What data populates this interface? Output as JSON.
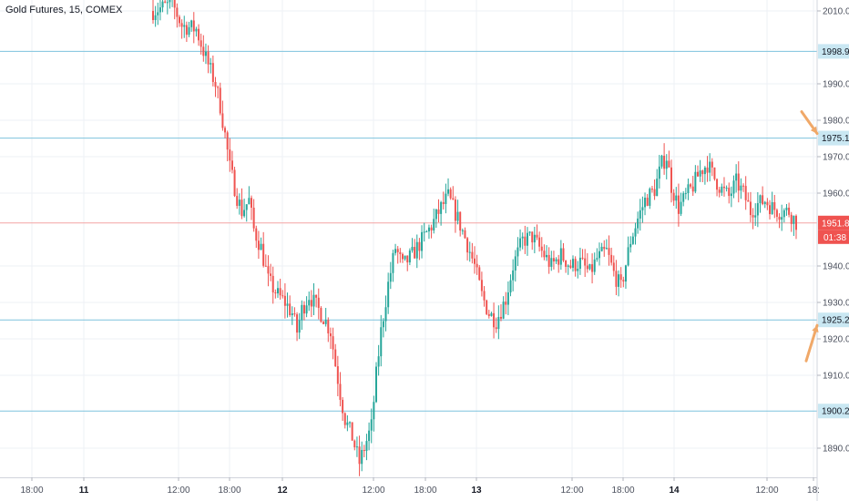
{
  "header": {
    "symbol_title": "Gold Futures, 15, COMEX"
  },
  "colors": {
    "up": "#26a69a",
    "down": "#ef5350",
    "grid": "#eef1f5",
    "axis_text": "#4a4f5c",
    "hline": "#7ec3dd",
    "hline_label_bg": "#c9e7f2",
    "price_line": "#f4a3a3",
    "price_label_bg": "#ef5350",
    "arrow": "#f0a868"
  },
  "chart_data": {
    "type": "candlestick",
    "title": "Gold Futures, 15, COMEX",
    "ylim": [
      1882,
      2013
    ],
    "y_ticks": [
      "2010.0",
      "1990.0",
      "1980.0",
      "1970.0",
      "1960.0",
      "1940.0",
      "1930.0",
      "1920.0",
      "1910.0",
      "1890.0"
    ],
    "x_ticks": [
      "18:00",
      "11",
      "12:00",
      "18:00",
      "12",
      "12:00",
      "18:00",
      "13",
      "12:00",
      "18:00",
      "14",
      "12:00",
      "18:"
    ],
    "x_tick_bold": [
      false,
      true,
      false,
      false,
      true,
      false,
      false,
      true,
      false,
      false,
      true,
      false,
      false
    ],
    "grid": true,
    "horizontal_levels": [
      {
        "value": 1998.9,
        "label": "1998.9"
      },
      {
        "value": 1975.1,
        "label": "1975.1"
      },
      {
        "value": 1925.2,
        "label": "1925.2"
      },
      {
        "value": 1900.2,
        "label": "1900.2"
      }
    ],
    "last_price": {
      "value": 1951.8,
      "label": "1951.8",
      "countdown": "01:38"
    },
    "arrows": [
      {
        "at_level": 1975.1,
        "direction": "down-right"
      },
      {
        "at_level": 1925.2,
        "direction": "up-right"
      }
    ],
    "price_path": [
      [
        0,
        2010
      ],
      [
        8,
        2012
      ],
      [
        12,
        2006
      ],
      [
        18,
        2005
      ],
      [
        22,
        1997
      ],
      [
        26,
        1990
      ],
      [
        28,
        1984
      ],
      [
        30,
        1976
      ],
      [
        32,
        1967
      ],
      [
        35,
        1959
      ],
      [
        37,
        1955
      ],
      [
        40,
        1958
      ],
      [
        42,
        1950
      ],
      [
        45,
        1945
      ],
      [
        48,
        1936
      ],
      [
        52,
        1932
      ],
      [
        55,
        1930
      ],
      [
        58,
        1927
      ],
      [
        60,
        1922
      ],
      [
        62,
        1928
      ],
      [
        65,
        1932
      ],
      [
        68,
        1929
      ],
      [
        71,
        1926
      ],
      [
        74,
        1922
      ],
      [
        76,
        1913
      ],
      [
        78,
        1905
      ],
      [
        80,
        1898
      ],
      [
        83,
        1893
      ],
      [
        86,
        1886
      ],
      [
        88,
        1890
      ],
      [
        91,
        1896
      ],
      [
        93,
        1910
      ],
      [
        95,
        1922
      ],
      [
        98,
        1935
      ],
      [
        101,
        1945
      ],
      [
        104,
        1940
      ],
      [
        108,
        1943
      ],
      [
        112,
        1947
      ],
      [
        116,
        1951
      ],
      [
        120,
        1956
      ],
      [
        123,
        1959
      ],
      [
        127,
        1953
      ],
      [
        131,
        1946
      ],
      [
        134,
        1940
      ],
      [
        137,
        1932
      ],
      [
        140,
        1927
      ],
      [
        143,
        1925
      ],
      [
        147,
        1931
      ],
      [
        150,
        1940
      ],
      [
        154,
        1947
      ],
      [
        158,
        1948
      ],
      [
        162,
        1944
      ],
      [
        166,
        1940
      ],
      [
        170,
        1943
      ],
      [
        174,
        1940
      ],
      [
        178,
        1941
      ],
      [
        182,
        1938
      ],
      [
        185,
        1942
      ],
      [
        189,
        1944
      ],
      [
        192,
        1938
      ],
      [
        195,
        1934
      ],
      [
        199,
        1947
      ],
      [
        202,
        1953
      ],
      [
        205,
        1958
      ],
      [
        209,
        1961
      ],
      [
        212,
        1968
      ],
      [
        214,
        1970
      ],
      [
        216,
        1962
      ],
      [
        219,
        1956
      ],
      [
        222,
        1959
      ],
      [
        225,
        1962
      ],
      [
        228,
        1966
      ],
      [
        231,
        1968
      ],
      [
        234,
        1964
      ],
      [
        237,
        1961
      ],
      [
        240,
        1959
      ],
      [
        243,
        1963
      ],
      [
        246,
        1960
      ],
      [
        249,
        1955
      ],
      [
        252,
        1957
      ],
      [
        255,
        1958
      ],
      [
        258,
        1956
      ],
      [
        261,
        1955
      ],
      [
        265,
        1955
      ],
      [
        268,
        1952
      ]
    ],
    "candle_count": 269
  }
}
